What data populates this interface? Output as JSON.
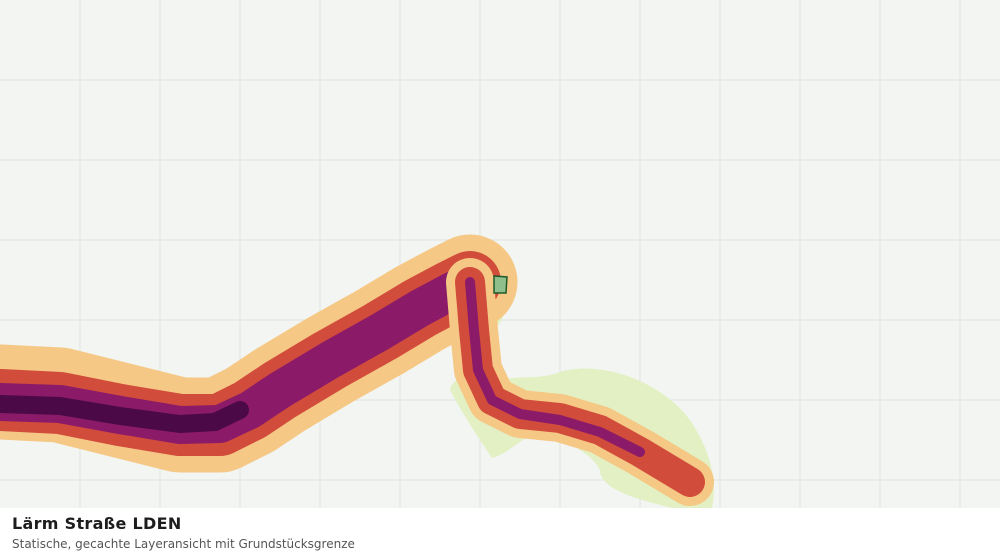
{
  "footer": {
    "title": "Lärm Straße LDEN",
    "subtitle": "Statische, gecachte Layeransicht mit Grundstücksgrenze"
  }
}
